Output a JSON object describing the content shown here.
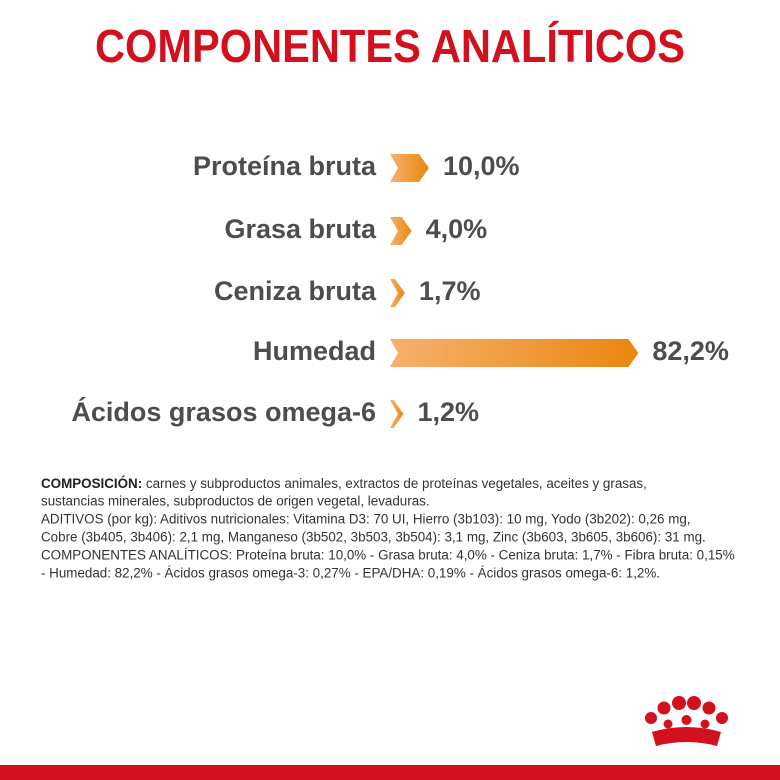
{
  "chart_data": {
    "type": "bar",
    "orientation": "horizontal",
    "title": "COMPONENTES ANALÍTICOS",
    "categories": [
      "Proteína bruta",
      "Grasa bruta",
      "Ceniza bruta",
      "Humedad",
      "Ácidos grasos omega-6"
    ],
    "values": [
      10.0,
      4.0,
      1.7,
      82.2,
      1.2
    ],
    "value_labels": [
      "10,0%",
      "4,0%",
      "1,7%",
      "82,2%",
      "1,2%"
    ],
    "color": "#ea870f"
  },
  "composition": {
    "heading": "COMPOSICIÓN:",
    "lines": [
      " carnes y subproductos animales, extractos de proteínas vegetales, aceites y grasas,",
      "sustancias minerales, subproductos de origen vegetal, levaduras.",
      "ADITIVOS (por kg): Aditivos nutricionales: Vitamina D3: 70 UI, Hierro (3b103): 10 mg, Yodo (3b202): 0,26 mg,",
      "Cobre (3b405, 3b406): 2,1 mg, Manganeso (3b502, 3b503, 3b504): 3,1 mg, Zinc (3b603, 3b605, 3b606): 31 mg.",
      "COMPONENTES ANALÍTICOS: Proteína bruta: 10,0% - Grasa bruta: 4,0% - Ceniza bruta: 1,7% - Fibra bruta: 0,15%",
      "- Humedad: 82,2% - Ácidos grasos omega-3: 0,27% - EPA/DHA: 0,19% - Ácidos grasos omega-6: 1,2%."
    ]
  }
}
